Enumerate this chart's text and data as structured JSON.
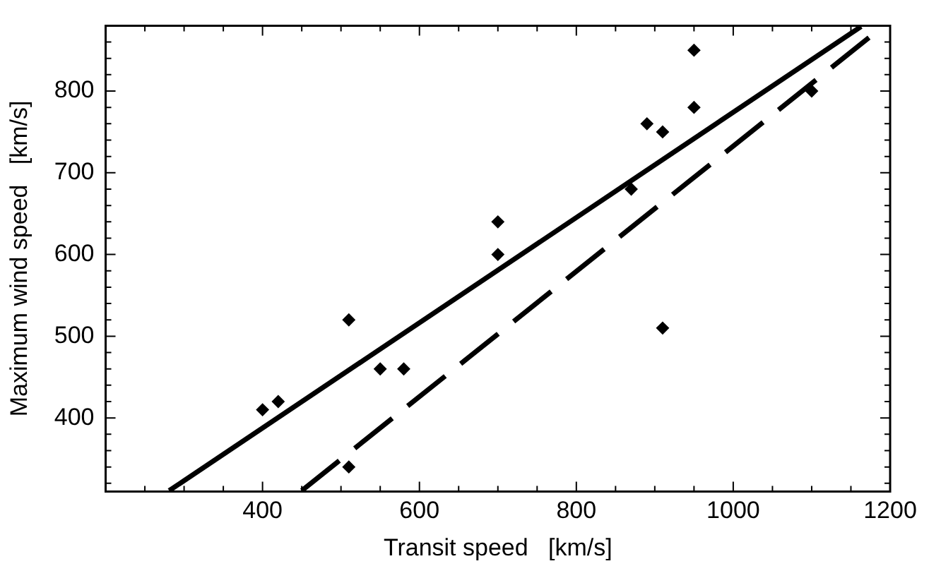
{
  "chart_data": {
    "type": "scatter",
    "xlabel": "Transit speed   [km/s]",
    "ylabel": "Maximum wind speed   [km/s]",
    "xlim": [
      200,
      1200
    ],
    "ylim": [
      310,
      880
    ],
    "xticks": [
      {
        "value": 200,
        "label": null
      },
      {
        "value": 250,
        "label": null
      },
      {
        "value": 300,
        "label": null
      },
      {
        "value": 350,
        "label": null
      },
      400,
      {
        "value": 450,
        "label": null
      },
      {
        "value": 500,
        "label": null
      },
      {
        "value": 550,
        "label": null
      },
      600,
      {
        "value": 650,
        "label": null
      },
      {
        "value": 700,
        "label": null
      },
      {
        "value": 750,
        "label": null
      },
      800,
      {
        "value": 850,
        "label": null
      },
      {
        "value": 900,
        "label": null
      },
      {
        "value": 950,
        "label": null
      },
      1000,
      {
        "value": 1050,
        "label": null
      },
      {
        "value": 1100,
        "label": null
      },
      {
        "value": 1150,
        "label": null
      },
      1200
    ],
    "yticks": [
      {
        "value": 320,
        "label": null
      },
      {
        "value": 340,
        "label": null
      },
      {
        "value": 360,
        "label": null
      },
      {
        "value": 380,
        "label": null
      },
      400,
      {
        "value": 420,
        "label": null
      },
      {
        "value": 440,
        "label": null
      },
      {
        "value": 460,
        "label": null
      },
      {
        "value": 480,
        "label": null
      },
      500,
      {
        "value": 520,
        "label": null
      },
      {
        "value": 540,
        "label": null
      },
      {
        "value": 560,
        "label": null
      },
      {
        "value": 580,
        "label": null
      },
      600,
      {
        "value": 620,
        "label": null
      },
      {
        "value": 640,
        "label": null
      },
      {
        "value": 660,
        "label": null
      },
      {
        "value": 680,
        "label": null
      },
      700,
      {
        "value": 720,
        "label": null
      },
      {
        "value": 740,
        "label": null
      },
      {
        "value": 760,
        "label": null
      },
      {
        "value": 780,
        "label": null
      },
      800,
      {
        "value": 820,
        "label": null
      },
      {
        "value": 840,
        "label": null
      },
      {
        "value": 860,
        "label": null
      }
    ],
    "grid": false,
    "legend": false,
    "marker": "diamond",
    "series": [
      {
        "color": "#000000",
        "x": [
          400,
          420,
          510,
          550,
          580,
          510,
          700,
          700,
          870,
          890,
          910,
          950,
          950,
          910,
          1100
        ],
        "values": [
          410,
          420,
          520,
          460,
          460,
          340,
          640,
          600,
          680,
          760,
          750,
          850,
          780,
          510,
          800
        ]
      },
      {
        "type": "line",
        "color": "#000000",
        "line_style": "solid",
        "marker": "none",
        "x": [
          281,
          1163
        ],
        "values": [
          311,
          879
        ]
      },
      {
        "type": "line",
        "color": "#000000",
        "line_style": "dashed",
        "marker": "none",
        "x": [
          450,
          1183
        ],
        "values": [
          311,
          873
        ]
      }
    ]
  }
}
